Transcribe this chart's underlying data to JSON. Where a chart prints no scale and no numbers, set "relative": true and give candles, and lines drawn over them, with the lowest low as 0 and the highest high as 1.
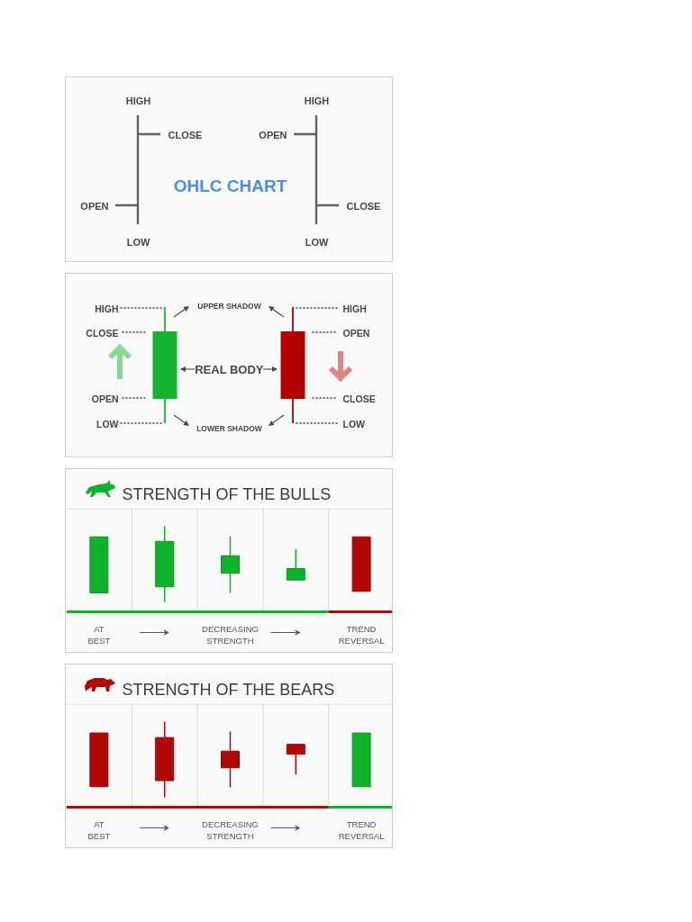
{
  "chart_data": [
    {
      "type": "other",
      "title": "OHLC CHART",
      "annotations": [
        "HIGH",
        "CLOSE",
        "OPEN",
        "LOW",
        "HIGH",
        "OPEN",
        "CLOSE",
        "LOW"
      ]
    },
    {
      "type": "other",
      "annotations": [
        "HIGH",
        "CLOSE",
        "OPEN",
        "LOW",
        "HIGH",
        "OPEN",
        "CLOSE",
        "LOW",
        "UPPER SHADOW",
        "REAL BODY",
        "LOWER SHADOW"
      ]
    },
    {
      "type": "candlestick",
      "title": "STRENGTH OF THE BULLS",
      "categories": [
        "AT BEST",
        null,
        "DECREASING STRENGTH",
        null,
        "TREND REVERSAL"
      ],
      "ohlc": [
        [
          0.12,
          0.86,
          0.12,
          0.86
        ],
        [
          0.2,
          1,
          0,
          0.8
        ],
        [
          0.38,
          0.87,
          0.12,
          0.61
        ],
        [
          0.29,
          0.7,
          0.29,
          0.44
        ],
        [
          0.86,
          0.86,
          0.14,
          0.14
        ]
      ],
      "colors": [
        "#0fb32b",
        "#0fb32b",
        "#0fb32b",
        "#0fb32b",
        "#b30808"
      ],
      "relative": true,
      "grid": "x",
      "tick_labels": "x"
    },
    {
      "type": "candlestick",
      "title": "STRENGTH OF THE BEARS",
      "categories": [
        "AT BEST",
        null,
        "DECREASING STRENGTH",
        null,
        "TREND REVERSAL"
      ],
      "ohlc": [
        [
          0.85,
          0.85,
          0.14,
          0.14
        ],
        [
          0.79,
          1,
          0,
          0.22
        ],
        [
          0.61,
          0.87,
          0.13,
          0.39
        ],
        [
          0.7,
          0.7,
          0.3,
          0.57
        ],
        [
          0.14,
          0.85,
          0.14,
          0.85
        ]
      ],
      "colors": [
        "#b30808",
        "#b30808",
        "#b30808",
        "#b30808",
        "#0fb32b"
      ],
      "relative": true,
      "grid": "x",
      "tick_labels": "x"
    }
  ]
}
